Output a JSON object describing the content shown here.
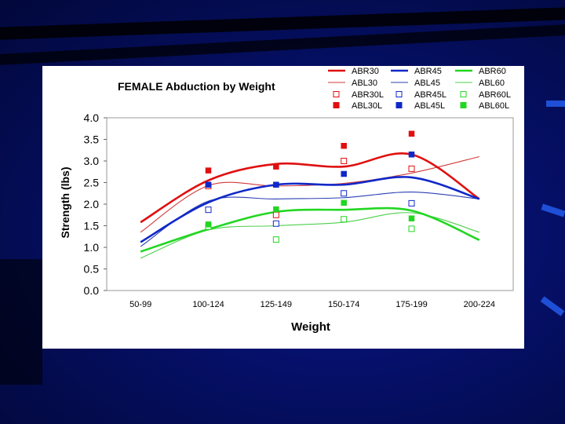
{
  "slide": {
    "background_color": "#050f66",
    "accent_color": "#1e4fd6"
  },
  "chart_data": {
    "type": "line",
    "title": "FEMALE Abduction by Weight",
    "xlabel": "Weight",
    "ylabel": "Strength (lbs)",
    "ylim": [
      0,
      4.0
    ],
    "yticks": [
      "0.0",
      "0.5",
      "1.0",
      "1.5",
      "2.0",
      "2.5",
      "3.0",
      "3.5",
      "4.0"
    ],
    "grid": false,
    "legend_position": "top-right",
    "categories": [
      "50-99",
      "100-124",
      "125-149",
      "150-174",
      "175-199",
      "200-224"
    ],
    "series": [
      {
        "name": "ABR30",
        "color": "#e01010",
        "style": "thick",
        "values": [
          1.58,
          2.55,
          2.93,
          2.87,
          3.15,
          2.12
        ]
      },
      {
        "name": "ABL30",
        "color": "#d23a3a",
        "style": "thin",
        "values": [
          1.35,
          2.43,
          2.42,
          2.48,
          2.72,
          3.1
        ]
      },
      {
        "name": "ABR30L",
        "color": "#e01010",
        "style": "open-marker",
        "values": [
          null,
          2.42,
          1.75,
          3.0,
          2.82,
          null
        ]
      },
      {
        "name": "ABL30L",
        "color": "#e01010",
        "style": "filled-marker",
        "values": [
          null,
          2.78,
          2.87,
          3.35,
          3.63,
          null
        ]
      },
      {
        "name": "ABR45",
        "color": "#1028c8",
        "style": "thick",
        "values": [
          1.12,
          2.04,
          2.45,
          2.45,
          2.62,
          2.12
        ]
      },
      {
        "name": "ABL45",
        "color": "#2b3fb3",
        "style": "thin",
        "values": [
          1.02,
          2.07,
          2.12,
          2.15,
          2.28,
          2.12
        ]
      },
      {
        "name": "ABR45L",
        "color": "#1028c8",
        "style": "open-marker",
        "values": [
          null,
          1.87,
          1.55,
          2.25,
          2.02,
          null
        ]
      },
      {
        "name": "ABL45L",
        "color": "#1028c8",
        "style": "filled-marker",
        "values": [
          null,
          2.45,
          2.45,
          2.7,
          3.15,
          null
        ]
      },
      {
        "name": "ABR60",
        "color": "#22d622",
        "style": "thick",
        "values": [
          0.9,
          1.42,
          1.82,
          1.87,
          1.85,
          1.17
        ]
      },
      {
        "name": "ABL60",
        "color": "#4ccf4c",
        "style": "thin",
        "values": [
          0.75,
          1.4,
          1.5,
          1.58,
          1.8,
          1.35
        ]
      },
      {
        "name": "ABR60L",
        "color": "#22d622",
        "style": "open-marker",
        "values": [
          null,
          1.48,
          1.18,
          1.65,
          1.43,
          null
        ]
      },
      {
        "name": "ABL60L",
        "color": "#22d622",
        "style": "filled-marker",
        "values": [
          null,
          1.53,
          1.88,
          2.03,
          1.67,
          null
        ]
      }
    ]
  }
}
